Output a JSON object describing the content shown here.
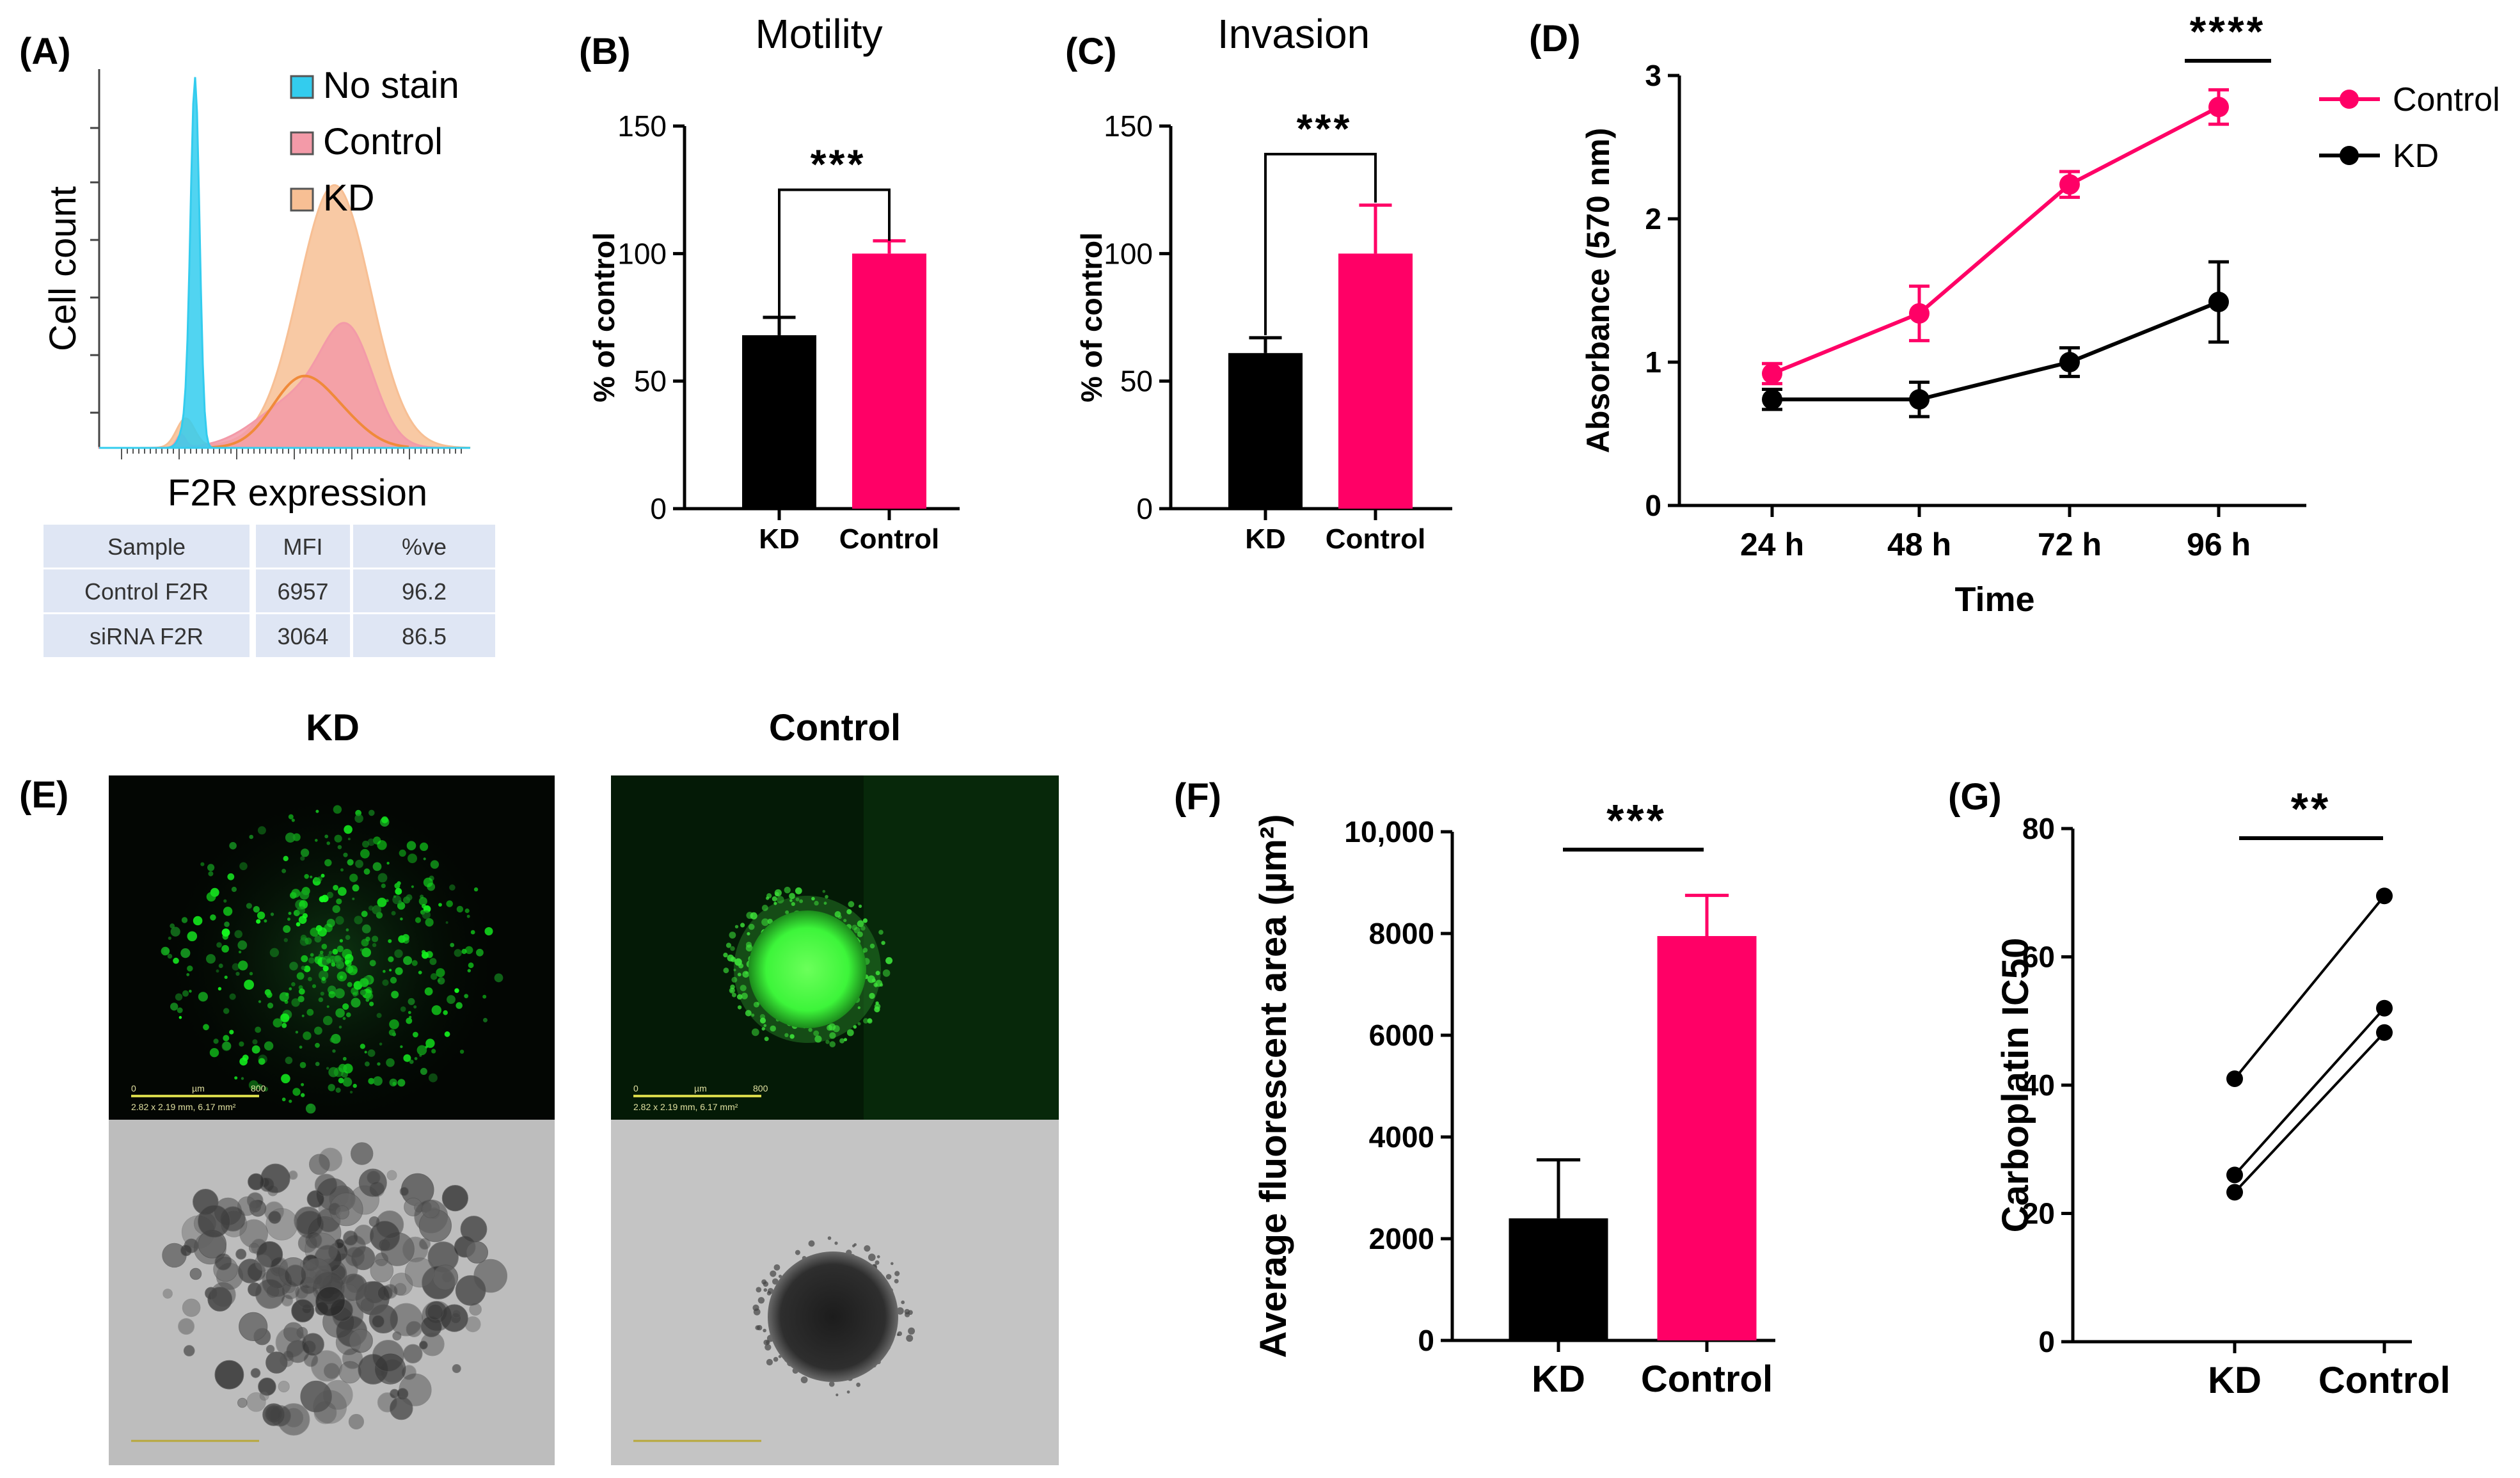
{
  "colors": {
    "kd": "#000000",
    "control": "#ff0066",
    "no_stain_fill": "#33ccee",
    "control_hist_fill": "#f39aa8",
    "kd_hist_fill": "#f7bf94",
    "table_bg": "#dfe6f4"
  },
  "panel_a": {
    "label": "(A)",
    "ylabel": "Cell count",
    "xlabel": "F2R expression",
    "legend": [
      "No stain",
      "Control",
      "KD"
    ],
    "table": {
      "headers": [
        "Sample",
        "MFI",
        "%ve"
      ],
      "rows": [
        [
          "Control F2R",
          "6957",
          "96.2"
        ],
        [
          "siRNA F2R",
          "3064",
          "86.5"
        ]
      ]
    }
  },
  "panel_e": {
    "label": "(E)",
    "kd_title": "KD",
    "control_title": "Control",
    "scale_bar_text": [
      "0",
      "µm",
      "800"
    ],
    "scale_caption": "2.82 x 2.19 mm, 6.17 mm²"
  },
  "chart_data": [
    {
      "id": "B",
      "label": "(B)",
      "type": "bar",
      "title": "Motility",
      "categories": [
        "KD",
        "Control"
      ],
      "values": [
        68,
        100
      ],
      "errors": [
        7,
        5
      ],
      "ylabel": "% of control",
      "ylim": [
        0,
        150
      ],
      "yticks": [
        "0",
        "50",
        "100",
        "150"
      ],
      "significance": "***"
    },
    {
      "id": "C",
      "label": "(C)",
      "type": "bar",
      "title": "Invasion",
      "categories": [
        "KD",
        "Control"
      ],
      "values": [
        61,
        100
      ],
      "errors": [
        6,
        19
      ],
      "ylabel": "% of control",
      "ylim": [
        0,
        150
      ],
      "yticks": [
        "0",
        "50",
        "100",
        "150"
      ],
      "significance": "***"
    },
    {
      "id": "D",
      "label": "(D)",
      "type": "line",
      "categories": [
        "24 h",
        "48 h",
        "72 h",
        "96 h"
      ],
      "series": [
        {
          "name": "Control",
          "values": [
            0.92,
            1.34,
            2.24,
            2.78
          ],
          "errors": [
            0.07,
            0.19,
            0.09,
            0.12
          ]
        },
        {
          "name": "KD",
          "values": [
            0.74,
            0.74,
            1.0,
            1.42
          ],
          "errors": [
            0.07,
            0.12,
            0.1,
            0.28
          ]
        }
      ],
      "xlabel": "Time",
      "ylabel": "Absorbance (570 nm)",
      "ylim": [
        0,
        3
      ],
      "yticks": [
        "0",
        "1",
        "2",
        "3"
      ],
      "significance": "****"
    },
    {
      "id": "F",
      "label": "(F)",
      "type": "bar",
      "categories": [
        "KD",
        "Control"
      ],
      "values": [
        2400,
        7950
      ],
      "errors": [
        1150,
        800
      ],
      "ylabel": "Average fluorescent area (µm²)",
      "ylim": [
        0,
        10000
      ],
      "yticks": [
        "0",
        "2000",
        "4000",
        "6000",
        "8000",
        "10,000"
      ],
      "significance": "***"
    },
    {
      "id": "G",
      "label": "(G)",
      "type": "scatter",
      "categories": [
        "KD",
        "Control"
      ],
      "pairs": [
        [
          41,
          69.5
        ],
        [
          26,
          52
        ],
        [
          23.3,
          48.2
        ]
      ],
      "ylabel": "Carboplatin IC50",
      "ylim": [
        0,
        80
      ],
      "yticks": [
        "0",
        "20",
        "40",
        "60",
        "80"
      ],
      "significance": "**"
    }
  ]
}
